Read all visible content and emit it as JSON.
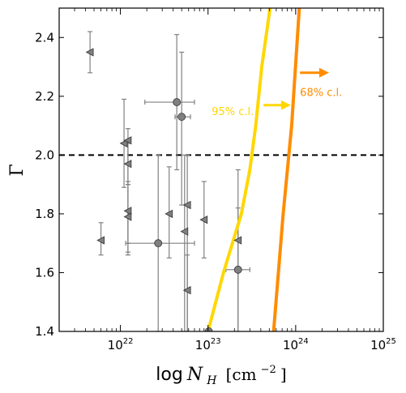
{
  "chart_data": {
    "type": "scatter",
    "xlabel": "log",
    "xlabel_var": "N",
    "xlabel_sub": "H",
    "xlabel_unit": "[cm",
    "xlabel_exp": "−2",
    "xlabel_close": "]",
    "ylabel": "Γ",
    "x_scale": "log",
    "xlim": [
      2e+21,
      1e+25
    ],
    "ylim": [
      1.4,
      2.5
    ],
    "x_ticks": [
      {
        "value": 1e+22,
        "base": "10",
        "exp": "22"
      },
      {
        "value": 1e+23,
        "base": "10",
        "exp": "23"
      },
      {
        "value": 1e+24,
        "base": "10",
        "exp": "24"
      },
      {
        "value": 1e+25,
        "base": "10",
        "exp": "25"
      }
    ],
    "y_ticks": [
      {
        "value": 1.4,
        "label": "1.4"
      },
      {
        "value": 1.6,
        "label": "1.6"
      },
      {
        "value": 1.8,
        "label": "1.8"
      },
      {
        "value": 2.0,
        "label": "2.0"
      },
      {
        "value": 2.2,
        "label": "2.2"
      },
      {
        "value": 2.4,
        "label": "2.4"
      }
    ],
    "reference_line": {
      "y": 2.0,
      "style": "dashed",
      "color": "#000000"
    },
    "detections": [
      {
        "x": 4.4e+22,
        "y": 2.18,
        "xlo": 1.9e+22,
        "xhi": 7e+22,
        "ylo": 1.95,
        "yhi": 2.41
      },
      {
        "x": 5e+22,
        "y": 2.13,
        "xlo": 4.2e+22,
        "xhi": 6.3e+22,
        "ylo": 1.83,
        "yhi": 2.35
      },
      {
        "x": 2.7e+22,
        "y": 1.7,
        "xlo": 1.15e+22,
        "xhi": 7e+22,
        "ylo": 1.4,
        "yhi": 2.0
      },
      {
        "x": 2.2e+23,
        "y": 1.61,
        "xlo": 1.6e+23,
        "xhi": 3e+23,
        "ylo": 1.4,
        "yhi": 1.82
      },
      {
        "x": 1.02e+23,
        "y": 1.4,
        "xlo": 1.02e+23,
        "xhi": 1.02e+23,
        "ylo": 1.4,
        "yhi": 1.4
      }
    ],
    "upper_limits": [
      {
        "x": 4.5e+21,
        "y": 2.35,
        "ylo": 2.28,
        "yhi": 2.42
      },
      {
        "x": 1.1e+22,
        "y": 2.04,
        "ylo": 1.89,
        "yhi": 2.19
      },
      {
        "x": 1.22e+22,
        "y": 2.05,
        "ylo": 1.9,
        "yhi": 2.09
      },
      {
        "x": 1.22e+22,
        "y": 1.97,
        "ylo": 1.66,
        "yhi": 2.04
      },
      {
        "x": 1.22e+22,
        "y": 1.81,
        "ylo": 1.7,
        "yhi": 1.91
      },
      {
        "x": 1.22e+22,
        "y": 1.79,
        "ylo": 1.67,
        "yhi": 1.9
      },
      {
        "x": 6e+21,
        "y": 1.71,
        "ylo": 1.66,
        "yhi": 1.77
      },
      {
        "x": 3.6e+22,
        "y": 1.8,
        "ylo": 1.65,
        "yhi": 1.96
      },
      {
        "x": 5.4e+22,
        "y": 1.74,
        "ylo": 1.4,
        "yhi": 2.0
      },
      {
        "x": 5.8e+22,
        "y": 1.83,
        "ylo": 1.4,
        "yhi": 2.0
      },
      {
        "x": 5.8e+22,
        "y": 1.54,
        "ylo": 1.4,
        "yhi": 1.66
      },
      {
        "x": 9e+22,
        "y": 1.78,
        "ylo": 1.65,
        "yhi": 1.91
      },
      {
        "x": 2.2e+23,
        "y": 1.71,
        "ylo": 1.4,
        "yhi": 1.95
      }
    ],
    "curves": [
      {
        "name": "95% c.l.",
        "color": "#FFD700",
        "points": [
          [
            1e+23,
            1.4
          ],
          [
            1.5e+23,
            1.6
          ],
          [
            2.4e+23,
            1.8
          ],
          [
            3e+23,
            1.95
          ],
          [
            3.5e+23,
            2.1
          ],
          [
            4.1e+23,
            2.3
          ],
          [
            5.1e+23,
            2.5
          ]
        ]
      },
      {
        "name": "68% c.l.",
        "color": "#FF8C00",
        "points": [
          [
            5.6e+23,
            1.4
          ],
          [
            7.2e+23,
            1.8
          ],
          [
            9e+23,
            2.1
          ],
          [
            1.1e+24,
            2.5
          ]
        ]
      }
    ],
    "annotations": [
      {
        "text": "95% c.l.",
        "color": "#FFD700",
        "x": 1.1e+23,
        "y": 2.15,
        "arrow_from": [
          4.3e+23,
          2.17
        ],
        "arrow_to": [
          8.8e+23,
          2.17
        ]
      },
      {
        "text": "68% c.l.",
        "color": "#FF8C00",
        "x": 1.12e+24,
        "y": 2.215,
        "arrow_from": [
          1.12e+24,
          2.28
        ],
        "arrow_to": [
          2.4e+24,
          2.28
        ]
      }
    ],
    "colors": {
      "markers": "#808080",
      "errorbars": "#808080"
    }
  }
}
